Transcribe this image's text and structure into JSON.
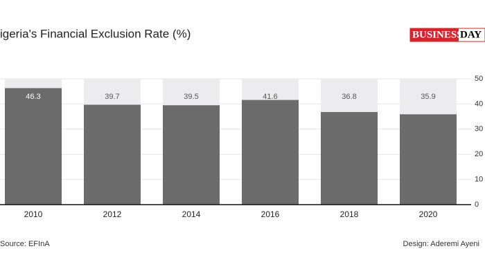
{
  "chart_data": {
    "type": "bar",
    "title": "igeria's Financial Exclusion Rate (%)",
    "logo": {
      "left": "BUSINESS",
      "right": "DAY"
    },
    "categories": [
      "2010",
      "2012",
      "2014",
      "2016",
      "2018",
      "2020"
    ],
    "values": [
      46.3,
      39.7,
      39.5,
      41.6,
      36.8,
      35.9
    ],
    "color": "#6b6b6b",
    "background_color": "#ececee",
    "ylim": [
      0,
      50
    ],
    "yticks": [
      0,
      10,
      20,
      30,
      40,
      50
    ],
    "grid": true,
    "source": "Source: EFInA",
    "credit": "Design: Aderemi Ayeni"
  }
}
